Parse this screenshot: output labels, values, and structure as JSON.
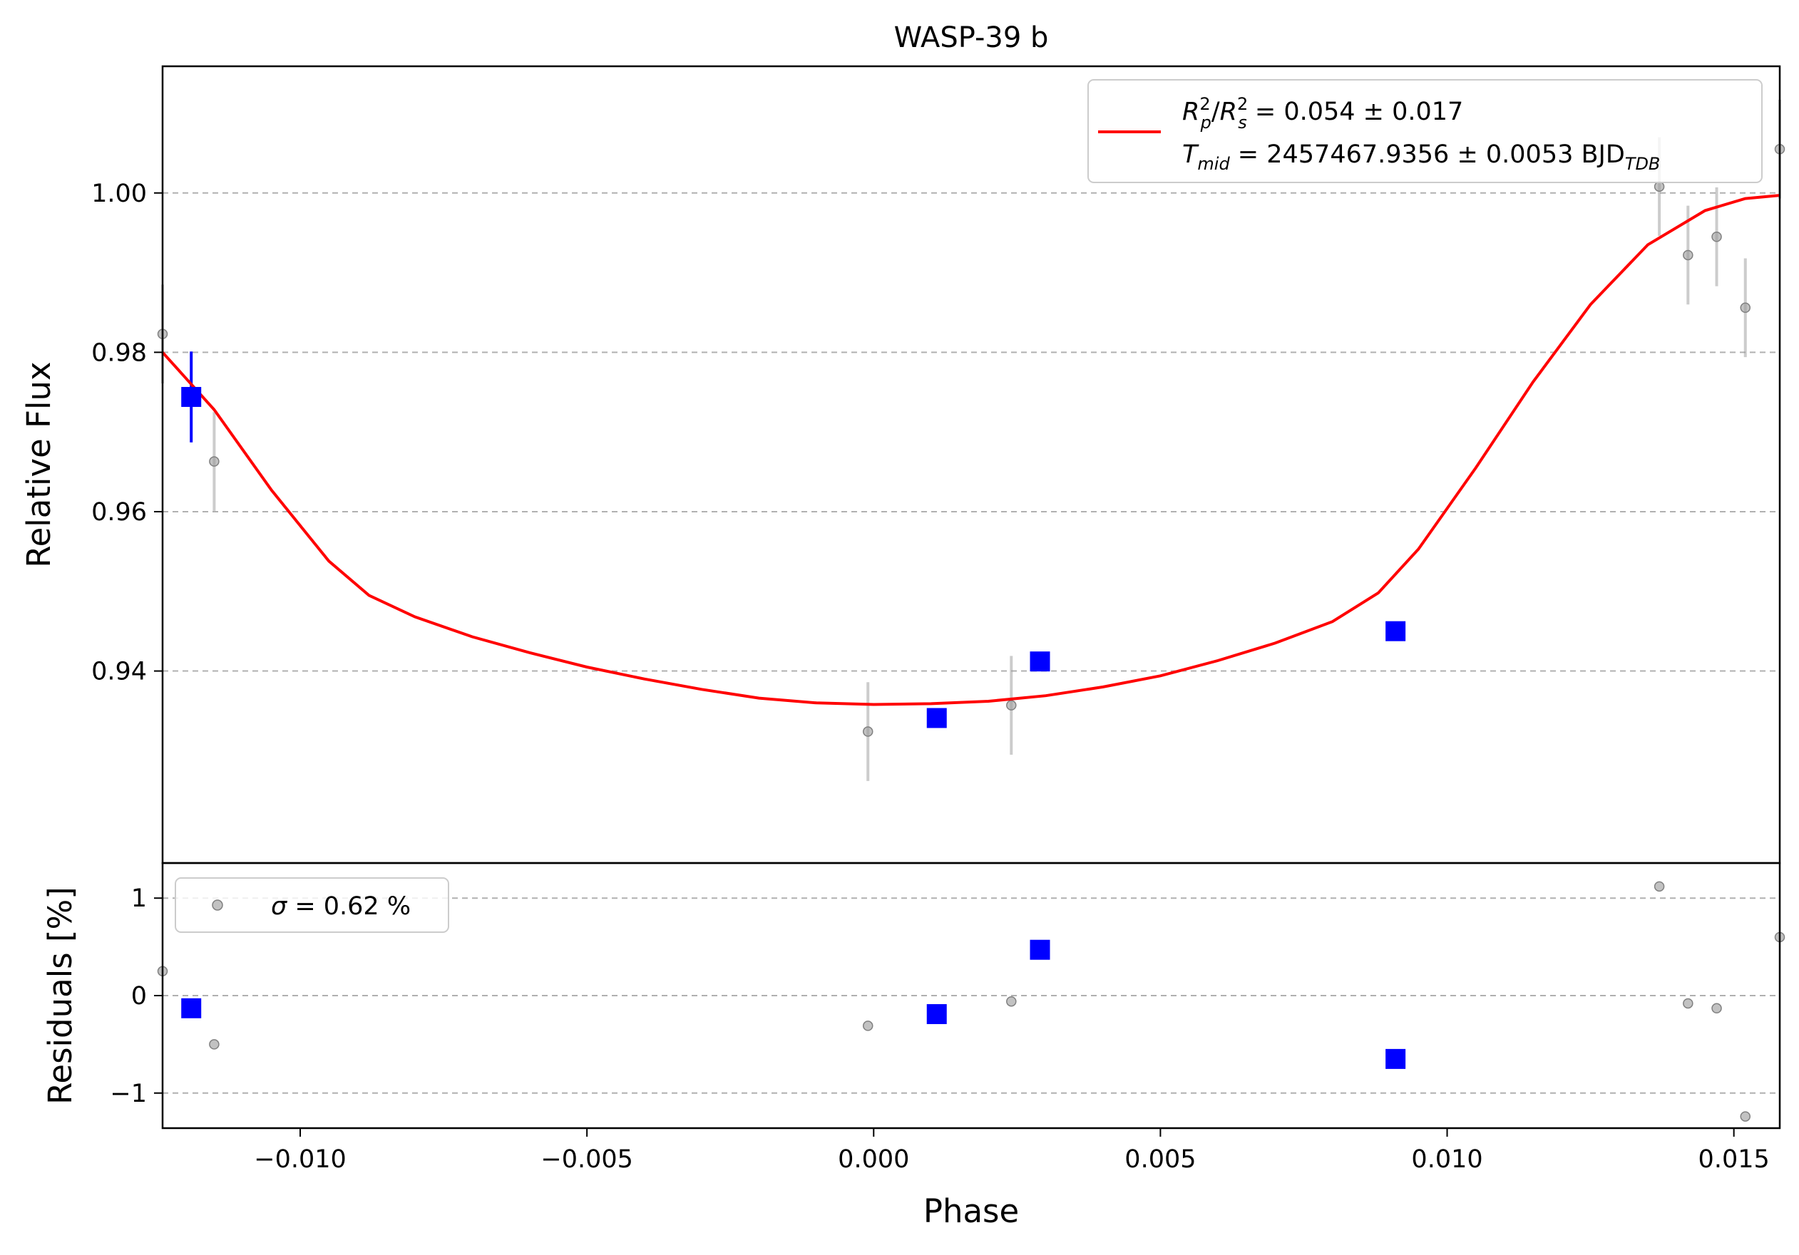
{
  "title": "WASP-39 b",
  "xlabel": "Phase",
  "top_ylabel": "Relative Flux",
  "bottom_ylabel": "Residuals [%]",
  "legend_top": {
    "line_color": "#ff0000",
    "line1": {
      "a": "R",
      "a_sup": "2",
      "a_sub": "p",
      "slash": "/",
      "b": "R",
      "b_sup": "2",
      "b_sub": "s",
      "rest": " = 0.054 ± 0.017"
    },
    "line2": {
      "a": "T",
      "a_sub": "mid",
      "rest": " = 2457467.9356 ± 0.0053 BJD",
      "unit_sub": "TDB"
    }
  },
  "legend_bottom": {
    "sigma": "σ",
    "rest": " = 0.62 %"
  },
  "x_ticks": [
    "−0.010",
    "−0.005",
    "0.000",
    "0.005",
    "0.010",
    "0.015"
  ],
  "top_y_ticks": [
    "0.94",
    "0.96",
    "0.98",
    "1.00"
  ],
  "bottom_y_ticks": [
    "−1",
    "0",
    "1"
  ],
  "chart_data": {
    "type": "scatter",
    "x_range": [
      -0.0124,
      0.0158
    ],
    "top_ylim": [
      0.9159,
      1.0159
    ],
    "bottom_ylim": [
      -1.36,
      1.36
    ],
    "x_tick_values": [
      -0.01,
      -0.005,
      0.0,
      0.005,
      0.01,
      0.015
    ],
    "top_y_tick_values": [
      0.94,
      0.96,
      0.98,
      1.0
    ],
    "bottom_y_tick_values": [
      -1,
      0,
      1
    ],
    "grid": "horizontal dashed",
    "legend_placement": {
      "top": "upper right",
      "bottom": "upper left"
    },
    "colors": {
      "model": "#ff0000",
      "raw": "#999999",
      "binned": "#0000ff",
      "grid": "#b0b0b0"
    },
    "model": {
      "name": "transit model",
      "x": [
        -0.0124,
        -0.0115,
        -0.0105,
        -0.0095,
        -0.0088,
        -0.008,
        -0.007,
        -0.006,
        -0.005,
        -0.004,
        -0.003,
        -0.002,
        -0.001,
        0.0,
        0.001,
        0.002,
        0.003,
        0.004,
        0.005,
        0.006,
        0.007,
        0.008,
        0.0088,
        0.0095,
        0.0105,
        0.0115,
        0.0125,
        0.0135,
        0.0145,
        0.0152,
        0.0158
      ],
      "y": [
        0.98,
        0.9728,
        0.9627,
        0.9538,
        0.9495,
        0.9468,
        0.9443,
        0.9423,
        0.9405,
        0.939,
        0.9377,
        0.9366,
        0.936,
        0.9358,
        0.9359,
        0.9362,
        0.9369,
        0.938,
        0.9394,
        0.9413,
        0.9435,
        0.9462,
        0.9498,
        0.9553,
        0.9655,
        0.9763,
        0.986,
        0.9935,
        0.9978,
        0.9993,
        0.9997
      ]
    },
    "raw_points": {
      "x": [
        -0.0124,
        -0.0115,
        -0.0001,
        0.0024,
        0.0137,
        0.0142,
        0.0147,
        0.0152,
        0.0158
      ],
      "y": [
        0.9823,
        0.9663,
        0.9324,
        0.9357,
        1.0008,
        0.9922,
        0.9945,
        0.9856,
        1.0055
      ],
      "yerr": [
        0.0062,
        0.0062,
        0.0062,
        0.0062,
        0.0062,
        0.0062,
        0.0062,
        0.0062,
        0.0062
      ]
    },
    "binned_points": {
      "x": [
        -0.0119,
        0.0011,
        0.0029,
        0.0091
      ],
      "y": [
        0.9744,
        0.9341,
        0.9412,
        0.945
      ],
      "yerr": [
        0.0057,
        0.0,
        0.0,
        0.0
      ]
    },
    "residuals_raw": {
      "x": [
        -0.0124,
        -0.0115,
        -0.0001,
        0.0024,
        0.0137,
        0.0142,
        0.0147,
        0.0152,
        0.0158
      ],
      "y": [
        0.25,
        -0.5,
        -0.31,
        -0.06,
        1.12,
        -0.08,
        -0.13,
        -1.24,
        0.6
      ]
    },
    "residuals_binned": {
      "x": [
        -0.0119,
        0.0011,
        0.0029,
        0.0091
      ],
      "y": [
        -0.13,
        -0.19,
        0.47,
        -0.65
      ]
    }
  }
}
